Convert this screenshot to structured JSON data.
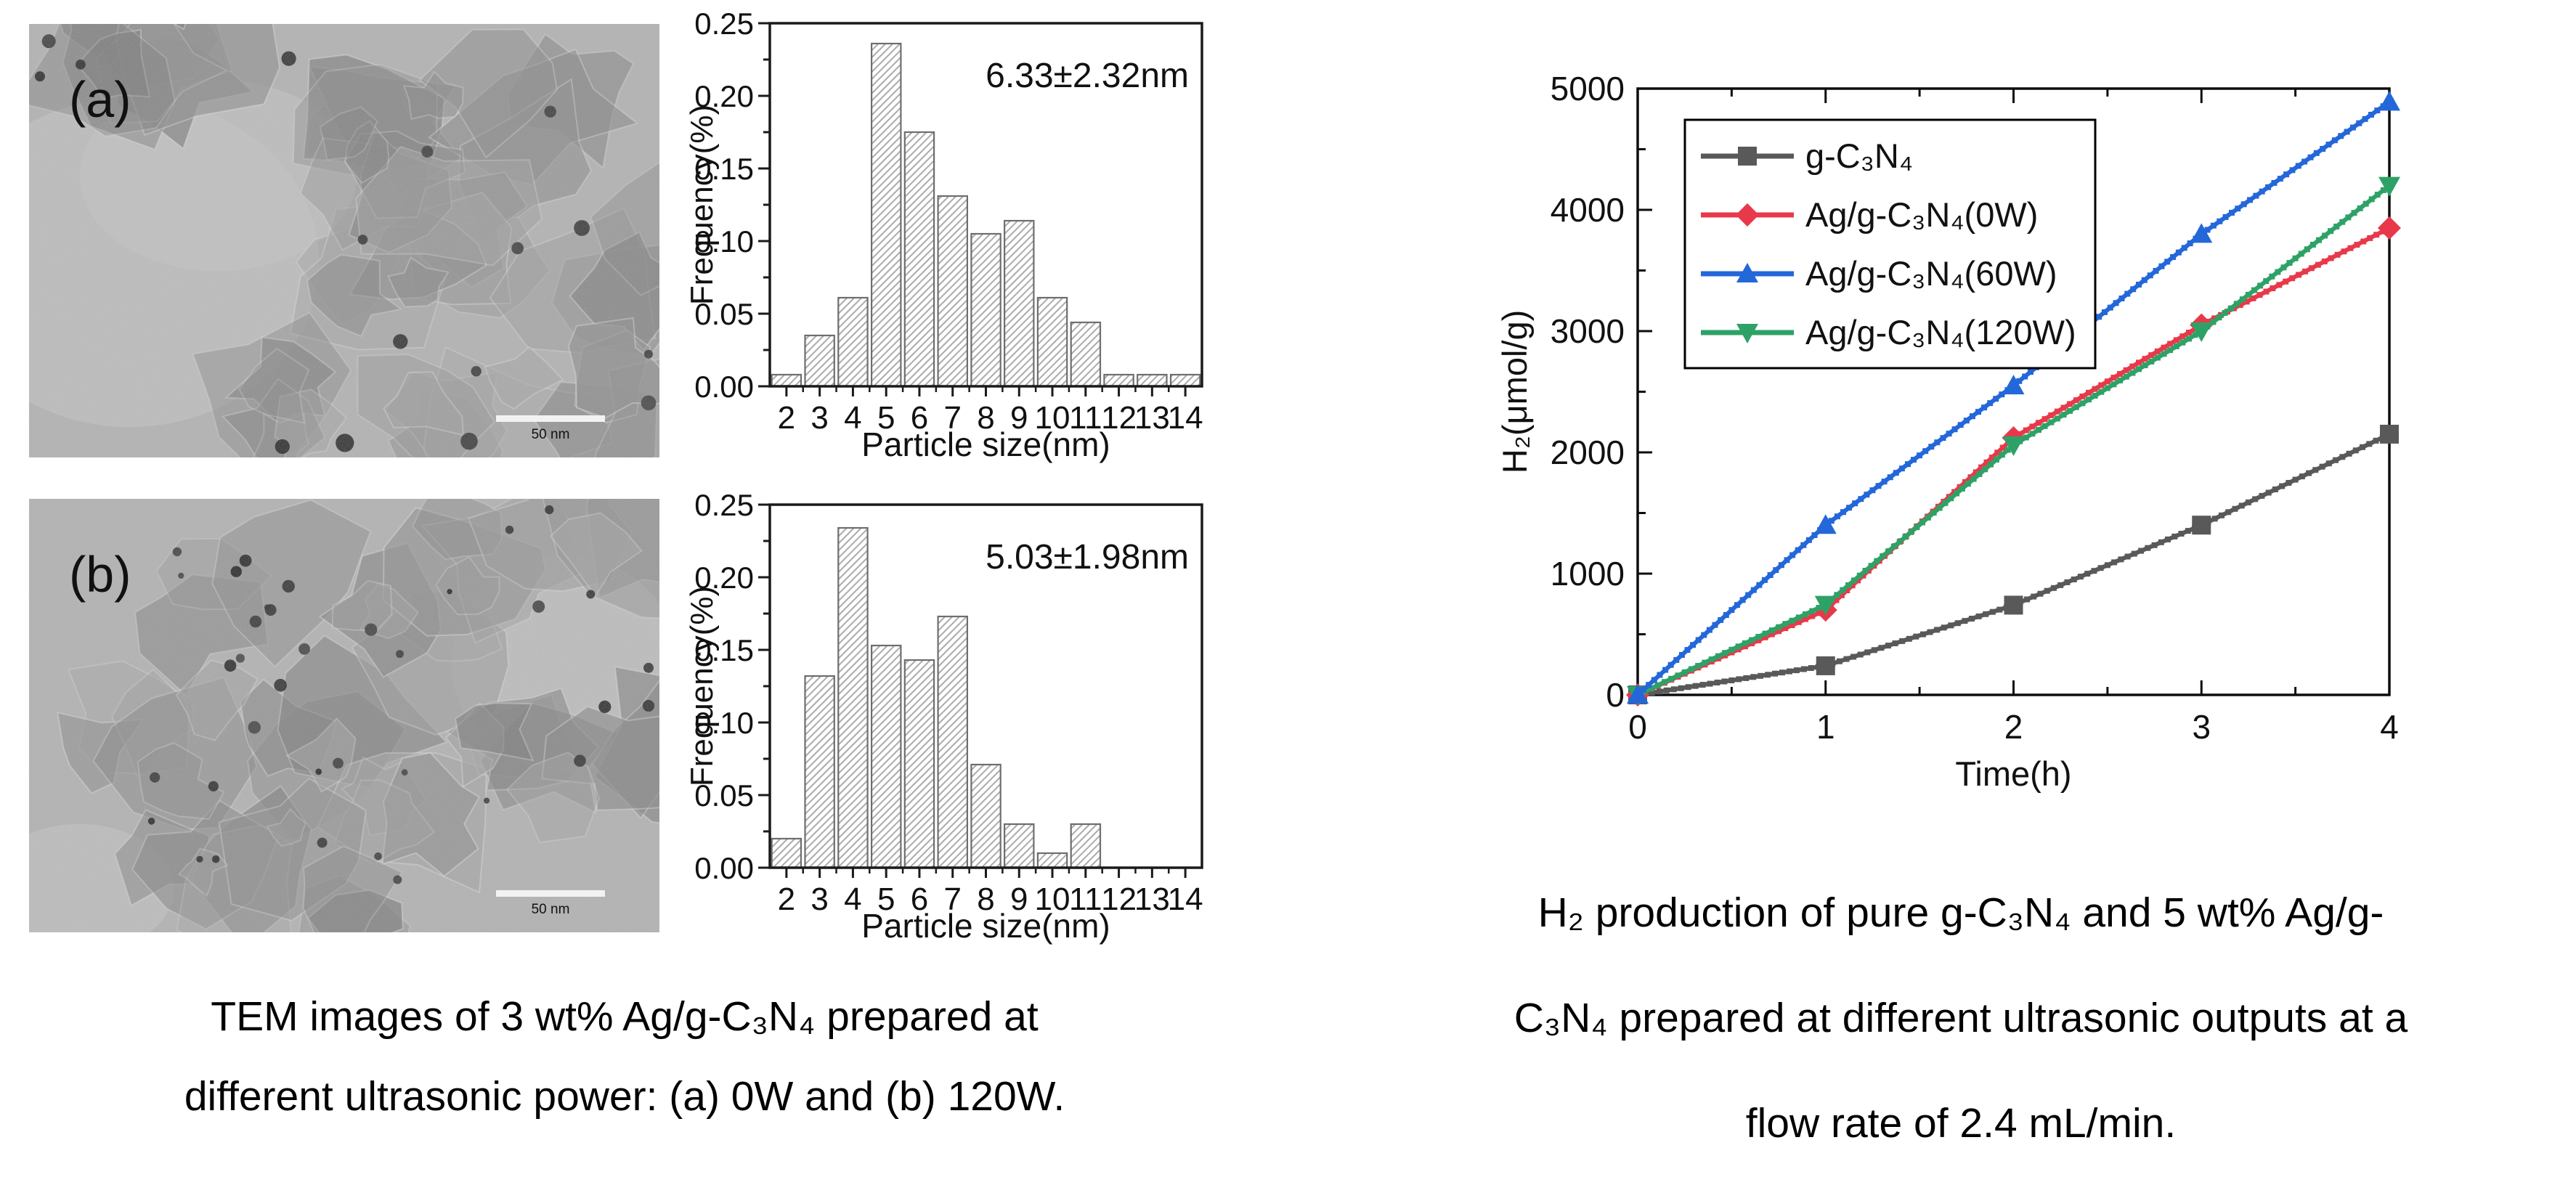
{
  "figure": {
    "tem": {
      "images": [
        {
          "panel_label": "(a)",
          "scale_bar": "50 nm"
        },
        {
          "panel_label": "(b)",
          "scale_bar": "50 nm"
        }
      ]
    },
    "left_caption_lines": [
      "TEM images of 3 wt% Ag/g-C₃N₄ prepared at",
      "different ultrasonic power: (a) 0W and (b) 120W."
    ],
    "right_caption_lines": [
      "H₂ production of pure g-C₃N₄ and 5 wt% Ag/g-",
      "C₃N₄ prepared at different ultrasonic outputs at a",
      "flow rate of 2.4 mL/min."
    ]
  },
  "chart_data": [
    {
      "id": "hist_a",
      "type": "bar",
      "title": "",
      "annotation": "6.33±2.32nm",
      "categories": [
        2,
        3,
        4,
        5,
        6,
        7,
        8,
        9,
        10,
        11,
        12,
        13,
        14
      ],
      "values": [
        0.008,
        0.035,
        0.061,
        0.236,
        0.175,
        0.131,
        0.105,
        0.114,
        0.061,
        0.044,
        0.008,
        0.008,
        0.008
      ],
      "xlabel": "Particle size(nm)",
      "ylabel": "Frequency(%)",
      "ylim": [
        0,
        0.25
      ],
      "ytick_step": 0.05,
      "grid": false,
      "bar_style": "hatched",
      "bar_border_color": "#6e6e6e",
      "hatch_color": "#ababab"
    },
    {
      "id": "hist_b",
      "type": "bar",
      "title": "",
      "annotation": "5.03±1.98nm",
      "categories": [
        2,
        3,
        4,
        5,
        6,
        7,
        8,
        9,
        10,
        11,
        12,
        13,
        14
      ],
      "values": [
        0.02,
        0.132,
        0.234,
        0.153,
        0.143,
        0.173,
        0.071,
        0.03,
        0.01,
        0.03,
        0,
        0,
        0
      ],
      "xlabel": "Particle size(nm)",
      "ylabel": "Frequency(%)",
      "ylim": [
        0,
        0.25
      ],
      "ytick_step": 0.05,
      "grid": false,
      "bar_style": "hatched",
      "bar_border_color": "#6e6e6e",
      "hatch_color": "#ababab"
    },
    {
      "id": "h2",
      "type": "line",
      "title": "",
      "x": [
        0,
        1,
        2,
        3,
        4
      ],
      "series": [
        {
          "name": "g-C₃N₄",
          "marker": "square",
          "color": "#595959",
          "values": [
            0,
            240,
            740,
            1400,
            2150
          ]
        },
        {
          "name": "Ag/g-C₃N₄(0W)",
          "marker": "diamond",
          "color": "#e8394a",
          "values": [
            0,
            700,
            2120,
            3050,
            3850
          ]
        },
        {
          "name": "Ag/g-C₃N₄(60W)",
          "marker": "triangle-up",
          "color": "#2367d9",
          "values": [
            0,
            1400,
            2550,
            3800,
            4890
          ]
        },
        {
          "name": "Ag/g-C₃N₄(120W)",
          "marker": "triangle-down",
          "color": "#2ea266",
          "values": [
            0,
            745,
            2060,
            3000,
            4200
          ]
        }
      ],
      "xlabel": "Time(h)",
      "ylabel": "H₂(μmol/g)",
      "xlim": [
        0,
        4
      ],
      "ylim": [
        0,
        5000
      ],
      "xtick_step": 1,
      "x_minor_step": 0.5,
      "ytick_step": 1000,
      "y_minor_step": 500,
      "legend_position": "upper-left",
      "grid": false
    }
  ]
}
